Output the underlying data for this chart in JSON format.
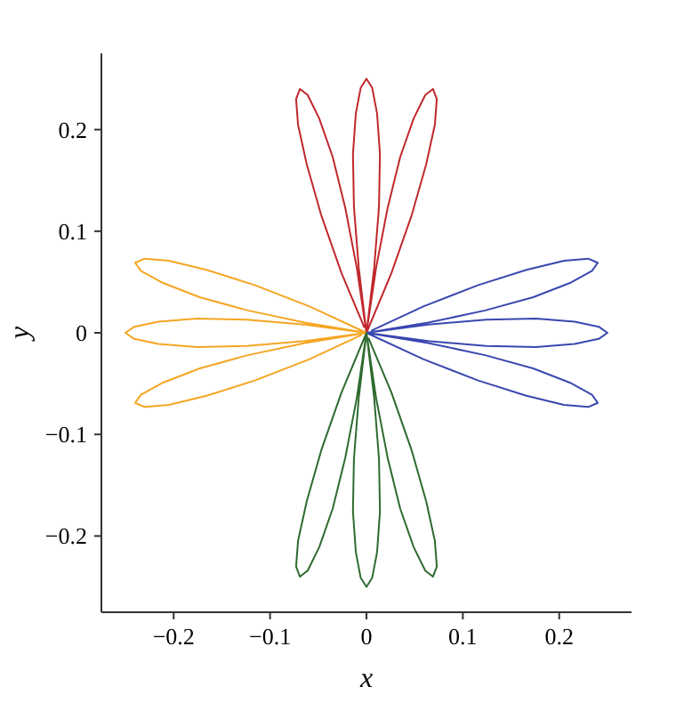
{
  "chart_data": {
    "type": "line",
    "xlabel": "x",
    "ylabel": "y",
    "marker": "none",
    "line_style": "solid",
    "grid": false,
    "xlim": [
      -0.275,
      0.275
    ],
    "ylim": [
      -0.275,
      0.275
    ],
    "xticks": [
      {
        "value": -0.2,
        "label": "−0.2"
      },
      {
        "value": -0.1,
        "label": "−0.1"
      },
      0,
      0.1,
      0.2
    ],
    "yticks": [
      {
        "value": -0.2,
        "label": "−0.2"
      },
      {
        "value": -0.1,
        "label": "−0.1"
      },
      0,
      0.1,
      0.2
    ],
    "series": [
      {
        "color": "#c0282c",
        "x": [
          0,
          0.026,
          0.047,
          0.062,
          0.071,
          0.073,
          0.069,
          0.061,
          0.049,
          0.035,
          0.022,
          0.01,
          0,
          0.008,
          0.013,
          0.014,
          0.011,
          0.006,
          0,
          -0.006,
          -0.011,
          -0.014,
          -0.013,
          -0.008,
          0,
          -0.01,
          -0.022,
          -0.035,
          -0.049,
          -0.061,
          -0.069,
          -0.073,
          -0.071,
          -0.062,
          -0.047,
          -0.026,
          -0.002
        ],
        "values": [
          0,
          0.059,
          0.116,
          0.166,
          0.205,
          0.23,
          0.24,
          0.234,
          0.211,
          0.173,
          0.123,
          0.064,
          0,
          0.064,
          0.124,
          0.176,
          0.216,
          0.241,
          0.25,
          0.241,
          0.216,
          0.176,
          0.124,
          0.064,
          0,
          0.064,
          0.123,
          0.173,
          0.211,
          0.234,
          0.24,
          0.23,
          0.205,
          0.166,
          0.116,
          0.059,
          0.005
        ]
      },
      {
        "color": "#3a47b0",
        "x": [
          0,
          0.059,
          0.116,
          0.166,
          0.205,
          0.23,
          0.24,
          0.234,
          0.211,
          0.173,
          0.123,
          0.064,
          0,
          0.064,
          0.124,
          0.176,
          0.216,
          0.241,
          0.25,
          0.241,
          0.216,
          0.176,
          0.124,
          0.064,
          0,
          0.064,
          0.123,
          0.173,
          0.211,
          0.234,
          0.24,
          0.23,
          0.205,
          0.166,
          0.116,
          0.059,
          0.005
        ],
        "values": [
          0,
          -0.026,
          -0.047,
          -0.062,
          -0.071,
          -0.073,
          -0.069,
          -0.061,
          -0.049,
          -0.035,
          -0.022,
          -0.01,
          0,
          -0.008,
          -0.013,
          -0.014,
          -0.011,
          -0.006,
          0,
          0.006,
          0.011,
          0.014,
          0.013,
          0.008,
          0,
          0.01,
          0.022,
          0.035,
          0.049,
          0.061,
          0.069,
          0.073,
          0.071,
          0.062,
          0.047,
          0.026,
          0.002
        ]
      },
      {
        "color": "#f5a623",
        "x": [
          0,
          -0.059,
          -0.116,
          -0.166,
          -0.205,
          -0.23,
          -0.24,
          -0.234,
          -0.211,
          -0.173,
          -0.123,
          -0.064,
          0,
          -0.064,
          -0.124,
          -0.176,
          -0.216,
          -0.241,
          -0.25,
          -0.241,
          -0.216,
          -0.176,
          -0.124,
          -0.064,
          0,
          -0.064,
          -0.123,
          -0.173,
          -0.211,
          -0.234,
          -0.24,
          -0.23,
          -0.205,
          -0.166,
          -0.116,
          -0.059,
          -0.005
        ],
        "values": [
          0,
          0.026,
          0.047,
          0.062,
          0.071,
          0.073,
          0.069,
          0.061,
          0.049,
          0.035,
          0.022,
          0.01,
          0,
          0.008,
          0.013,
          0.014,
          0.011,
          0.006,
          0,
          -0.006,
          -0.011,
          -0.014,
          -0.013,
          -0.008,
          0,
          -0.01,
          -0.022,
          -0.035,
          -0.049,
          -0.061,
          -0.069,
          -0.073,
          -0.071,
          -0.062,
          -0.047,
          -0.026,
          -0.002
        ]
      },
      {
        "color": "#2e6b2e",
        "x": [
          0,
          -0.026,
          -0.047,
          -0.062,
          -0.071,
          -0.073,
          -0.069,
          -0.061,
          -0.049,
          -0.035,
          -0.022,
          -0.01,
          0,
          -0.008,
          -0.013,
          -0.014,
          -0.011,
          -0.006,
          0,
          0.006,
          0.011,
          0.014,
          0.013,
          0.008,
          0,
          0.01,
          0.022,
          0.035,
          0.049,
          0.061,
          0.069,
          0.073,
          0.071,
          0.062,
          0.047,
          0.026,
          0.002
        ],
        "values": [
          0,
          -0.059,
          -0.116,
          -0.166,
          -0.205,
          -0.23,
          -0.24,
          -0.234,
          -0.211,
          -0.173,
          -0.123,
          -0.064,
          0,
          -0.064,
          -0.124,
          -0.176,
          -0.216,
          -0.241,
          -0.25,
          -0.241,
          -0.216,
          -0.176,
          -0.124,
          -0.064,
          0,
          -0.064,
          -0.123,
          -0.173,
          -0.211,
          -0.234,
          -0.24,
          -0.23,
          -0.205,
          -0.166,
          -0.116,
          -0.059,
          -0.005
        ]
      }
    ]
  }
}
